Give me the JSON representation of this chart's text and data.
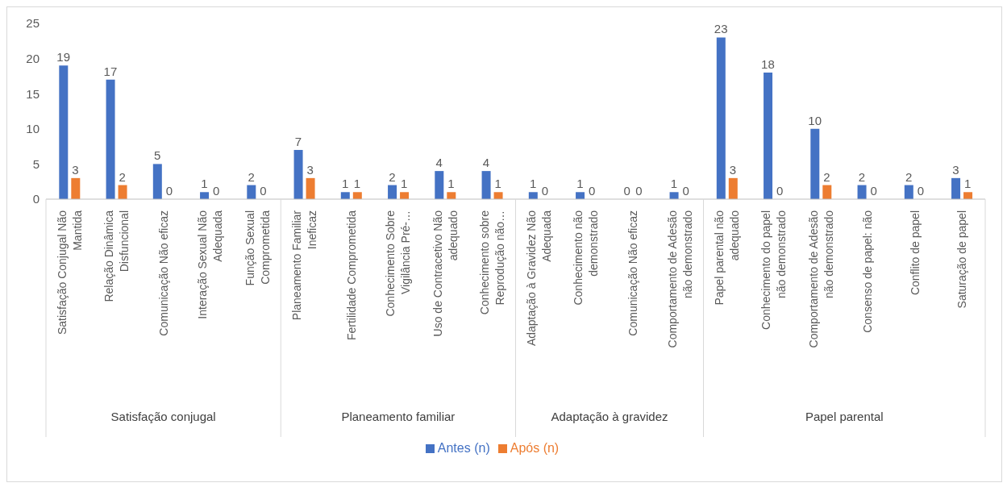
{
  "chart_data": {
    "type": "bar",
    "categories": [
      "Satisfação Conjugal Não Mantida",
      "Relação Dinâmica Disfuncional",
      "Comunicação Não eficaz",
      "Interação Sexual Não Adequada",
      "Função Sexual Comprometida",
      "Planeamento Familiar Ineficaz",
      "Fertilidade Comprometida",
      "Conhecimento Sobre Vigilância Pré-…",
      "Uso de Contracetivo Não adequado",
      "Conhecimento sobre Reprodução não…",
      "Adaptação à Gravidez Não Adequada",
      "Conhecimento não demonstrado",
      "Comunicação Não eficaz",
      "Comportamento de Adesão não demonstrado",
      "Papel parental não adequado",
      "Conhecimento do papel não demonstrado",
      "Comportamento de Adesão não demonstrado",
      "Consenso de papel: não",
      "Conflito de papel",
      "Saturação de papel"
    ],
    "series": [
      {
        "name": "Antes (n)",
        "color": "#4472c4",
        "values": [
          19,
          17,
          5,
          1,
          2,
          7,
          1,
          2,
          4,
          4,
          1,
          1,
          0,
          1,
          23,
          18,
          10,
          2,
          2,
          3
        ]
      },
      {
        "name": "Após (n)",
        "color": "#ed7d31",
        "values": [
          3,
          2,
          0,
          0,
          0,
          3,
          1,
          1,
          1,
          1,
          0,
          0,
          0,
          0,
          3,
          0,
          2,
          0,
          0,
          1
        ]
      }
    ],
    "annotations": [
      "Satisfação conjugal",
      "Planeamento familiar",
      "Adaptação à gravidez",
      "Papel parental"
    ],
    "ylim": [
      0,
      25
    ],
    "yticks": [
      0,
      5,
      10,
      15,
      20,
      25
    ],
    "data_labels": true,
    "legend": "bottom"
  }
}
